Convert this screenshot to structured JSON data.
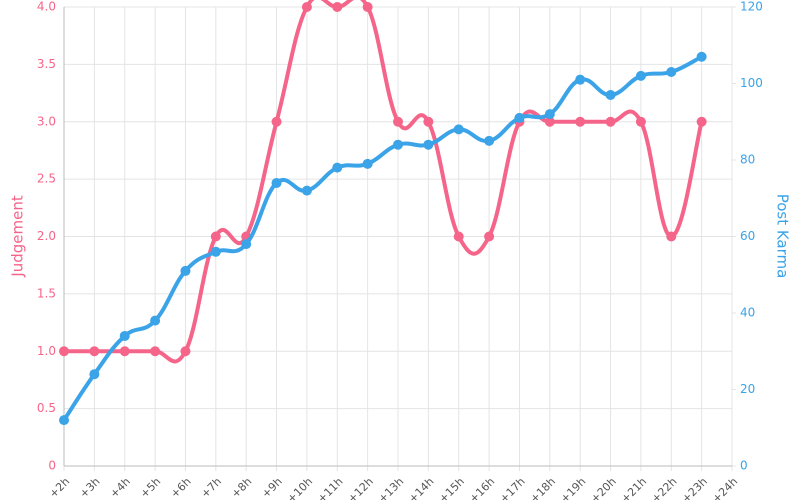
{
  "chart_data": {
    "type": "line",
    "categories": [
      "+2h",
      "+3h",
      "+4h",
      "+5h",
      "+6h",
      "+7h",
      "+8h",
      "+9h",
      "+10h",
      "+11h",
      "+12h",
      "+13h",
      "+14h",
      "+15h",
      "+16h",
      "+17h",
      "+18h",
      "+19h",
      "+20h",
      "+21h",
      "+22h",
      "+23h",
      "+24h"
    ],
    "series": [
      {
        "name": "Judgement",
        "color": "#f5658a",
        "axis": "y",
        "values": [
          1,
          1,
          1,
          1,
          1,
          2,
          2,
          3,
          4,
          4,
          4,
          3,
          3,
          2,
          2,
          3,
          3,
          3,
          3,
          3,
          2,
          3,
          null
        ]
      },
      {
        "name": "Post Karma",
        "color": "#3ba3e8",
        "axis": "y2",
        "values": [
          12,
          24,
          34,
          38,
          51,
          56,
          58,
          74,
          72,
          78,
          79,
          84,
          84,
          88,
          85,
          91,
          92,
          101,
          97,
          102,
          103,
          107,
          null
        ]
      }
    ],
    "y_label": "Judgement",
    "y2_label": "Post Karma",
    "ylim": [
      0,
      4
    ],
    "yticks": [
      0,
      0.5,
      {
        "value": 1,
        "label": "1.0"
      },
      1.5,
      {
        "value": 2,
        "label": "2.0"
      },
      2.5,
      {
        "value": 3,
        "label": "3.0"
      },
      3.5,
      {
        "value": 4,
        "label": "4.0"
      }
    ],
    "y2lim": [
      0,
      120
    ],
    "y2ticks": [
      0,
      20,
      40,
      60,
      80,
      100,
      120
    ],
    "grid": true
  }
}
